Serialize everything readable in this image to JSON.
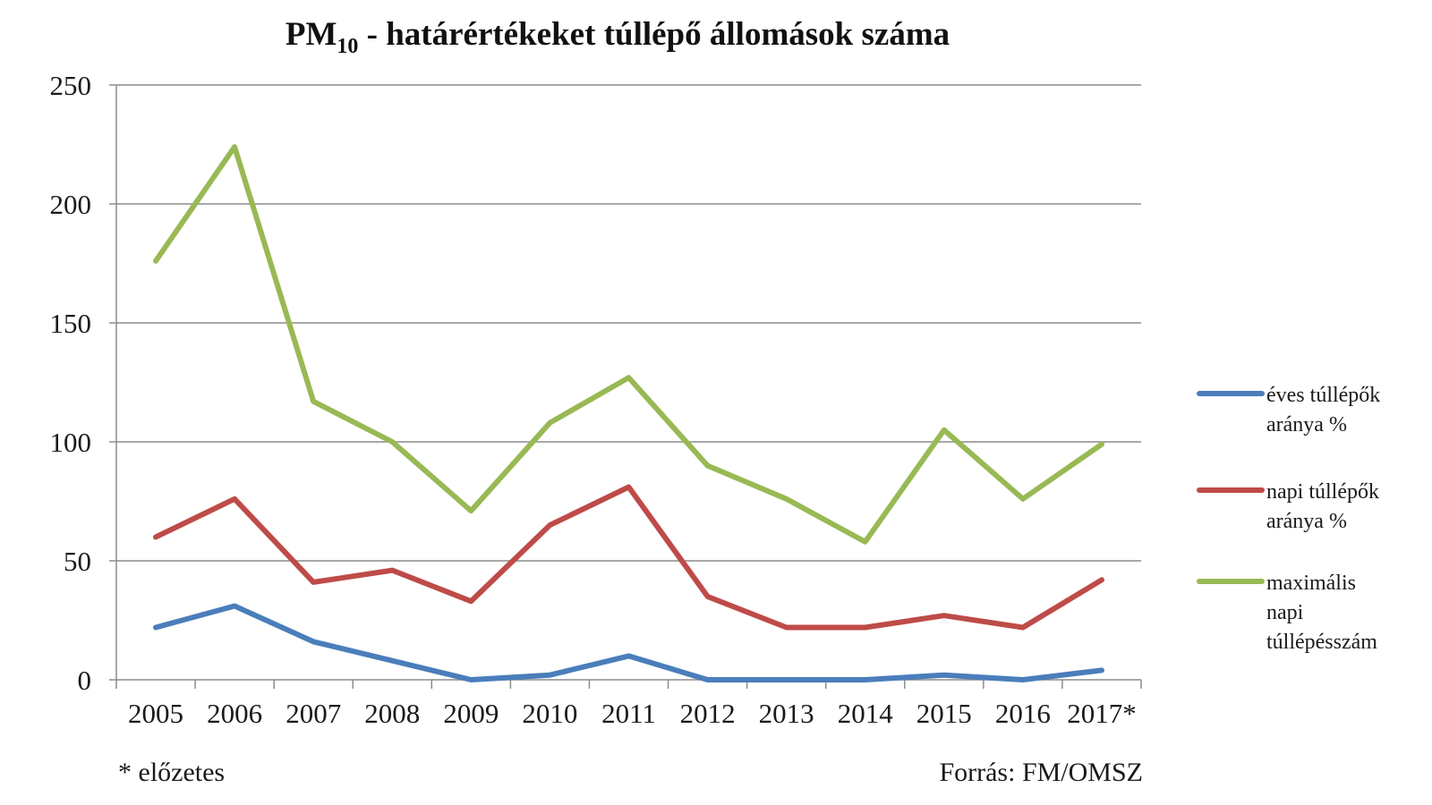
{
  "chart_data": {
    "type": "line",
    "title": {
      "main": "PM",
      "subscript": "10",
      "rest": " - határértékeket túllépő állomások száma"
    },
    "categories": [
      "2005",
      "2006",
      "2007",
      "2008",
      "2009",
      "2010",
      "2011",
      "2012",
      "2013",
      "2014",
      "2015",
      "2016",
      "2017*"
    ],
    "ylim": [
      0,
      250
    ],
    "yticks": [
      "0",
      "50",
      "100",
      "150",
      "200",
      "250"
    ],
    "grid": true,
    "legend_position": "right",
    "series": [
      {
        "name": "éves túllépők aránya %",
        "legend_lines": [
          "éves túllépők",
          "aránya %"
        ],
        "color": "#4a7ebb",
        "values": [
          22,
          31,
          16,
          8,
          0,
          2,
          10,
          0,
          0,
          0,
          2,
          0,
          4
        ]
      },
      {
        "name": "napi túllépők aránya %",
        "legend_lines": [
          "napi túllépők",
          "aránya %"
        ],
        "color": "#be4b48",
        "values": [
          60,
          76,
          41,
          46,
          33,
          65,
          81,
          35,
          22,
          22,
          27,
          22,
          42
        ]
      },
      {
        "name": "maximális napi túllépésszám",
        "legend_lines": [
          "maximális",
          "napi",
          "túllépésszám"
        ],
        "color": "#98b954",
        "values": [
          176,
          224,
          117,
          100,
          71,
          108,
          127,
          90,
          76,
          58,
          105,
          76,
          99
        ]
      }
    ],
    "footnote": "* előzetes",
    "source": "Forrás: FM/OMSZ"
  }
}
